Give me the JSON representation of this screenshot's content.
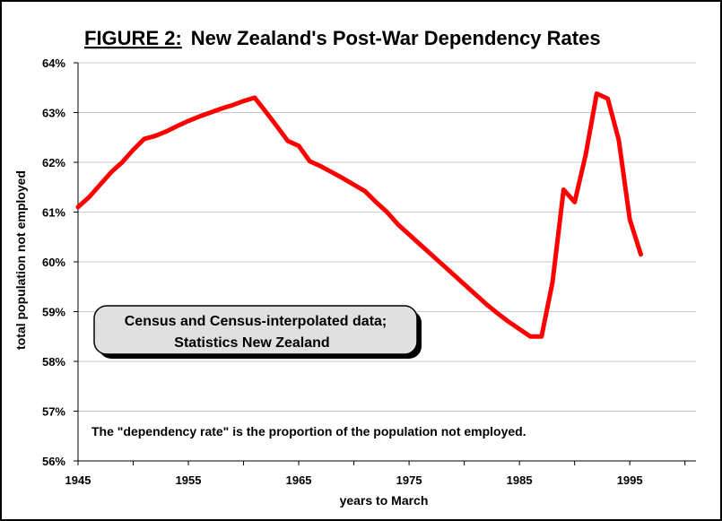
{
  "chart_data": {
    "type": "line",
    "title_prefix": "FIGURE 2:",
    "title_main": "New Zealand's Post-War Dependency Rates",
    "xlabel": "years to March",
    "ylabel": "total population not employed",
    "xlim": [
      1945,
      2001
    ],
    "ylim": [
      56,
      64
    ],
    "x_ticks": [
      "1945",
      "1955",
      "1965",
      "1975",
      "1985",
      "1995"
    ],
    "y_ticks": [
      "56%",
      "57%",
      "58%",
      "59%",
      "60%",
      "61%",
      "62%",
      "63%",
      "64%"
    ],
    "grid": "horizontal",
    "source_box": [
      "Census and Census-interpolated data;",
      "Statistics New Zealand"
    ],
    "footnote": "The \"dependency rate\" is the proportion of the population not employed.",
    "line_color": "#ff0000",
    "series": [
      {
        "x": [
          1945,
          1946,
          1947,
          1948,
          1949,
          1950,
          1951,
          1952,
          1953,
          1954,
          1955,
          1956,
          1957,
          1958,
          1959,
          1960,
          1961,
          1962,
          1963,
          1964,
          1965,
          1966,
          1967,
          1968,
          1969,
          1970,
          1971,
          1972,
          1973,
          1974,
          1975,
          1976,
          1977,
          1978,
          1979,
          1980,
          1981,
          1982,
          1983,
          1984,
          1985,
          1986,
          1987,
          1988,
          1989,
          1990,
          1991,
          1992,
          1993,
          1994,
          1995,
          1996
        ],
        "values": [
          61.1,
          61.3,
          61.55,
          61.8,
          62.0,
          62.25,
          62.47,
          62.53,
          62.62,
          62.73,
          62.83,
          62.92,
          63.0,
          63.08,
          63.15,
          63.23,
          63.3,
          63.02,
          62.73,
          62.43,
          62.33,
          62.02,
          61.92,
          61.8,
          61.68,
          61.55,
          61.42,
          61.2,
          61.0,
          60.75,
          60.55,
          60.35,
          60.15,
          59.95,
          59.75,
          59.55,
          59.35,
          59.15,
          58.97,
          58.8,
          58.65,
          58.5,
          58.5,
          59.6,
          61.45,
          61.2,
          62.15,
          63.38,
          63.28,
          62.45,
          60.85,
          60.15
        ]
      }
    ]
  }
}
